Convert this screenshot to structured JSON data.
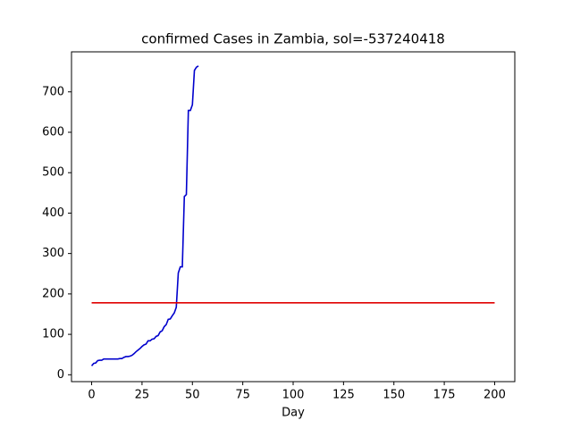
{
  "chart_data": {
    "type": "line",
    "title": "confirmed Cases in Zambia, sol=-537240418",
    "x_label": "Day",
    "series": [
      {
        "color": "#0000cd",
        "x": [
          0,
          1,
          2,
          3,
          4,
          5,
          6,
          7,
          8,
          9,
          10,
          11,
          12,
          13,
          14,
          15,
          16,
          17,
          18,
          19,
          20,
          21,
          22,
          23,
          24,
          25,
          26,
          27,
          28,
          29,
          30,
          31,
          32,
          33,
          34,
          35,
          36,
          37,
          38,
          39,
          40,
          41,
          42,
          43,
          44,
          45,
          46,
          47,
          48,
          49,
          50,
          51,
          52,
          53
        ],
        "values": [
          22,
          28,
          29,
          35,
          36,
          36,
          39,
          39,
          39,
          39,
          39,
          39,
          39,
          39,
          40,
          40,
          43,
          45,
          45,
          46,
          48,
          52,
          57,
          61,
          65,
          70,
          74,
          76,
          84,
          84,
          88,
          89,
          95,
          97,
          106,
          109,
          119,
          124,
          137,
          138,
          146,
          153,
          167,
          252,
          267,
          267,
          441,
          446,
          654,
          654,
          668,
          753,
          761,
          764
        ]
      },
      {
        "color": "#e00000",
        "x": [
          0,
          200
        ],
        "values": [
          178,
          178
        ]
      }
    ],
    "xlim": [
      -10,
      210
    ],
    "xticks": [
      0,
      25,
      50,
      75,
      100,
      125,
      150,
      175,
      200
    ],
    "ylim": [
      -17,
      799
    ],
    "yticks": [
      0,
      100,
      200,
      300,
      400,
      500,
      600,
      700
    ]
  }
}
